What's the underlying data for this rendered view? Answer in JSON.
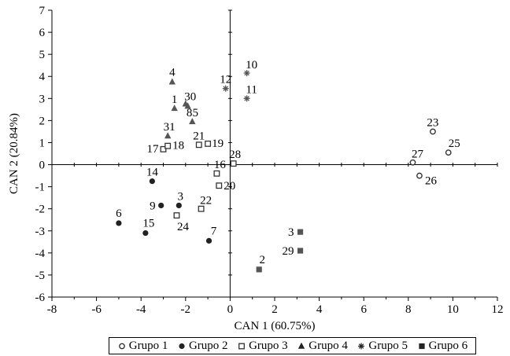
{
  "chart_data": {
    "type": "scatter",
    "xlabel": "CAN 1 (60.75%)",
    "ylabel": "CAN 2 (20.84%)",
    "xlim": [
      -8,
      12
    ],
    "ylim": [
      -6,
      7
    ],
    "x_ticks": [
      -8,
      -6,
      -4,
      -2,
      0,
      2,
      4,
      6,
      8,
      10,
      12
    ],
    "y_ticks": [
      -6,
      -5,
      -4,
      -3,
      -2,
      -1,
      0,
      1,
      2,
      3,
      4,
      5,
      6,
      7
    ],
    "grid": false,
    "legend_position": "bottom",
    "series": [
      {
        "name": "Grupo 1",
        "marker": "open-circle",
        "color": "#333333",
        "points": [
          {
            "x": 9.1,
            "y": 1.5,
            "label": "23"
          },
          {
            "x": 9.8,
            "y": 0.55,
            "label": "25"
          },
          {
            "x": 8.2,
            "y": 0.1,
            "label": "27"
          },
          {
            "x": 8.5,
            "y": -0.5,
            "label": "26"
          }
        ]
      },
      {
        "name": "Grupo 2",
        "marker": "filled-circle",
        "color": "#222222",
        "points": [
          {
            "x": -3.5,
            "y": -0.75,
            "label": "14"
          },
          {
            "x": -2.3,
            "y": -1.85,
            "label": "3"
          },
          {
            "x": -3.1,
            "y": -1.85,
            "label": "9"
          },
          {
            "x": -5.0,
            "y": -2.65,
            "label": "6"
          },
          {
            "x": -3.8,
            "y": -3.1,
            "label": "15"
          },
          {
            "x": -0.95,
            "y": -3.45,
            "label": "7"
          }
        ]
      },
      {
        "name": "Grupo 3",
        "marker": "open-square",
        "color": "#333333",
        "points": [
          {
            "x": -3.0,
            "y": 0.7,
            "label": "17"
          },
          {
            "x": -2.8,
            "y": 0.85,
            "label": "18"
          },
          {
            "x": -1.4,
            "y": 0.9,
            "label": "21"
          },
          {
            "x": -1.0,
            "y": 0.95,
            "label": "19"
          },
          {
            "x": 0.15,
            "y": 0.05,
            "label": "28"
          },
          {
            "x": -0.6,
            "y": -0.4,
            "label": "16"
          },
          {
            "x": -0.5,
            "y": -0.95,
            "label": "20"
          },
          {
            "x": -1.3,
            "y": -2.0,
            "label": "22"
          },
          {
            "x": -2.4,
            "y": -2.3,
            "label": "24"
          }
        ]
      },
      {
        "name": "Grupo 4",
        "marker": "filled-triangle",
        "color": "#555555",
        "points": [
          {
            "x": -2.6,
            "y": 3.75,
            "label": "4"
          },
          {
            "x": -2.5,
            "y": 2.55,
            "label": "1"
          },
          {
            "x": -2.0,
            "y": 2.75,
            "label": "30"
          },
          {
            "x": -1.9,
            "y": 2.65,
            "label": "8"
          },
          {
            "x": -1.7,
            "y": 1.95,
            "label": "5"
          },
          {
            "x": -2.8,
            "y": 1.3,
            "label": "31"
          }
        ]
      },
      {
        "name": "Grupo 5",
        "marker": "asterisk",
        "color": "#555555",
        "points": [
          {
            "x": 0.75,
            "y": 4.15,
            "label": "10"
          },
          {
            "x": -0.2,
            "y": 3.45,
            "label": "12"
          },
          {
            "x": 0.75,
            "y": 3.0,
            "label": "11"
          }
        ]
      },
      {
        "name": "Grupo 6",
        "marker": "filled-square",
        "color": "#555555",
        "points": [
          {
            "x": 3.15,
            "y": -3.05,
            "label": "3"
          },
          {
            "x": 3.15,
            "y": -3.9,
            "label": "29"
          },
          {
            "x": 1.3,
            "y": -4.75,
            "label": "2"
          }
        ]
      }
    ]
  }
}
